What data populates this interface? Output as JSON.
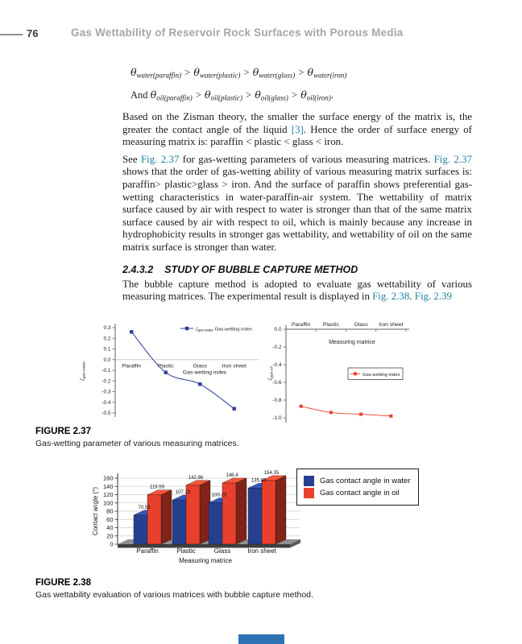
{
  "header": {
    "page_number": "76",
    "running_title": "Gas Wettability of Reservoir Rock Surfaces with Porous Media"
  },
  "formulas": {
    "theta": "θ",
    "gt": " > ",
    "and_prefix": "And ",
    "period": ".",
    "water_subs": [
      "water(paraffin)",
      "water(plastic)",
      "water(glass)",
      "water(iron)"
    ],
    "oil_subs": [
      "oil(paraffin)",
      "oil(plastic)",
      "oil(glass)",
      "oil(iron)"
    ]
  },
  "paragraphs": {
    "p1": {
      "a": "Based on the Zisman theory, the smaller the surface energy of the matrix is, the greater the contact angle of the liquid ",
      "ref": "[3]",
      "b": ". Hence the order of surface energy of measuring matrix is: paraffin < plastic < glass < iron."
    },
    "p2": {
      "a": "See ",
      "ref1": "Fig. 2.37",
      "b": " for gas-wetting parameters of various measuring matrices. ",
      "ref2": "Fig. 2.37",
      "c": " shows that the order of gas-wetting ability of various measuring matrix surfaces is: paraffin> plastic>glass > iron. And the surface of paraffin shows preferential gas-wetting characteristics in water-paraffin-air system. The wettability of matrix surface caused by air with respect to water is stronger than that of the same matrix surface caused by air with respect to oil, which is mainly because any increase in hydrophobicity results in stronger gas wettability, and wettability of oil on the same matrix surface is stronger than water."
    },
    "p3": {
      "a": "The bubble capture method is adopted to evaluate gas wettability of various measuring matrices. The experimental result is displayed in ",
      "ref1": "Fig. 2.38",
      "b": ". ",
      "ref2": "Fig. 2.39"
    }
  },
  "section": {
    "number": "2.4.3.2",
    "title": "STUDY OF BUBBLE CAPTURE METHOD"
  },
  "figures": {
    "fig237": {
      "label": "FIGURE 2.37",
      "caption": "Gas-wetting parameter of various measuring matrices."
    },
    "fig238": {
      "label": "FIGURE 2.38",
      "caption": "Gas wettability evaluation of various matrices with bubble capture method."
    }
  },
  "colors": {
    "link": "#2380a5",
    "header_gray": "#a6a6a6",
    "navy": "#26408f",
    "red": "#e8402c",
    "footer_bar": "#2e74b5"
  },
  "chart_data": [
    {
      "type": "line",
      "id": "gas-water",
      "categories": [
        "Paraffin",
        "Plastic",
        "Glass",
        "Iron sheet"
      ],
      "values": [
        0.26,
        -0.12,
        -0.23,
        -0.46
      ],
      "ylabel_base": "ζ",
      "ylabel_sub": "gas-water",
      "inner_label": "Gas-wetting index",
      "legend_base": "ζ",
      "legend_sub": "gas-water",
      "legend_label": "Gas-wetting index",
      "ylim": [
        -0.5,
        0.3
      ],
      "yticks": [
        0.3,
        0.2,
        0.1,
        0.0,
        -0.1,
        -0.2,
        -0.3,
        -0.4,
        -0.5
      ],
      "color": "#2e3f96",
      "category_labels_at": "zero-line",
      "grid": "zero-line-only",
      "legend_position": "top-right"
    },
    {
      "type": "line",
      "id": "gas-oil",
      "categories": [
        "Paraffin",
        "Plastic",
        "Glass",
        "Iron sheet"
      ],
      "values": [
        -0.87,
        -0.94,
        -0.96,
        -0.98
      ],
      "ylabel_base": "ζ",
      "ylabel_sub": "gas-oil",
      "xlabel": "Measuring matrice",
      "legend_label": "Gas-wetting index",
      "ylim": [
        -1.0,
        0.0
      ],
      "yticks": [
        0.0,
        -0.2,
        -0.4,
        -0.6,
        -0.8,
        -1.0
      ],
      "color": "#e8402c",
      "category_labels_at": "top",
      "grid": false,
      "legend_position": "middle-boxed"
    },
    {
      "type": "bar",
      "id": "contact-angle",
      "categories": [
        "Paraffin",
        "Plastic",
        "Glass",
        "Iron sheet"
      ],
      "series": [
        {
          "name": "Gas contact angle in water",
          "color": "#26408f",
          "values": [
            70.53,
            107.13,
            100.23,
            135.89
          ]
        },
        {
          "name": "Gas contact angle in oil",
          "color": "#e8402c",
          "values": [
            119.59,
            142.86,
            148.4,
            154.35
          ]
        }
      ],
      "ylabel": "Contact angle (°)",
      "xlabel": "Measuring matrice",
      "ylim": [
        0,
        160
      ],
      "yticks": [
        0,
        20,
        40,
        60,
        80,
        100,
        120,
        140,
        160
      ],
      "style": "3d",
      "grid": true,
      "legend_position": "outside-right"
    }
  ]
}
